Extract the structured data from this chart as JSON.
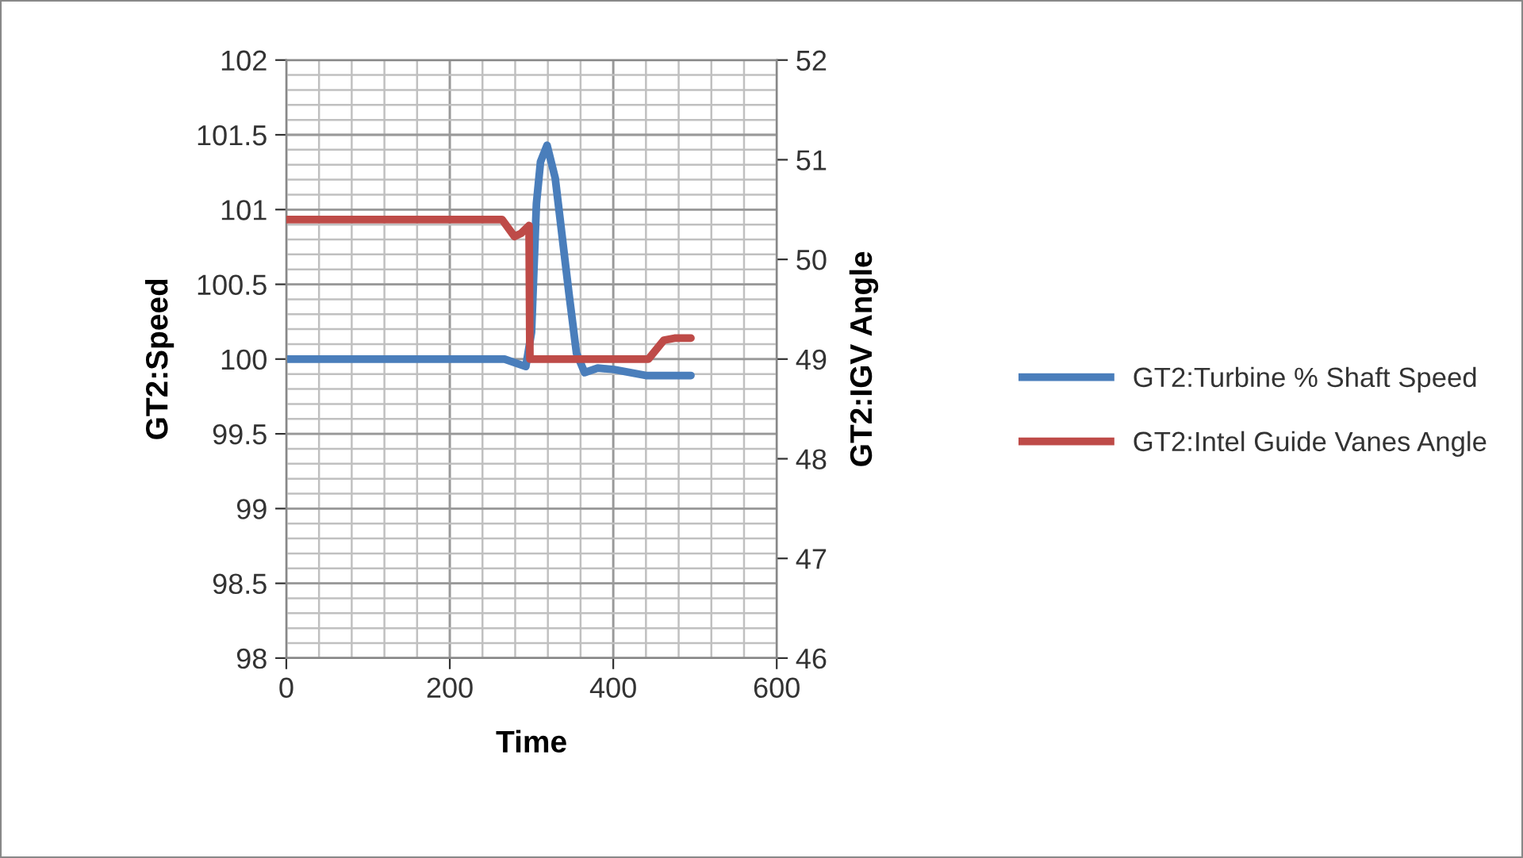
{
  "chart_data": {
    "type": "line",
    "xlabel": "Time",
    "ylabel": "GT2:Speed",
    "y2label": "GT2:IGV Angle",
    "xlim": [
      0,
      600
    ],
    "xticks": [
      0,
      200,
      400,
      600
    ],
    "ylim": [
      98,
      102
    ],
    "yticks": [
      98,
      98.5,
      99,
      99.5,
      100,
      100.5,
      101,
      101.5,
      102
    ],
    "y2lim": [
      46,
      52
    ],
    "y2ticks": [
      46,
      47,
      48,
      49,
      50,
      51,
      52
    ],
    "grid": true,
    "legend": "right",
    "marker": "none",
    "line_style": "solid",
    "series": [
      {
        "name": "GT2:Turbine % Shaft Speed",
        "color": "#4a7ebb",
        "x": [
          0,
          267,
          293,
          300,
          306,
          311,
          319,
          329,
          339,
          346,
          355,
          365,
          381,
          401,
          440,
          495
        ],
        "values": [
          100.0,
          100.0,
          99.95,
          100.18,
          101.04,
          101.32,
          101.43,
          101.21,
          100.75,
          100.43,
          100.04,
          99.91,
          99.94,
          99.93,
          99.89,
          99.89
        ]
      },
      {
        "name": "GT2:Intel Guide Vanes Angle",
        "color": "#be4b48",
        "axis": "y2",
        "x": [
          0,
          264,
          279,
          287,
          297,
          298,
          303,
          443,
          462,
          475,
          495
        ],
        "values": [
          50.4,
          50.4,
          50.23,
          50.26,
          50.34,
          49.0,
          49.0,
          49.0,
          49.19,
          49.21,
          49.21
        ]
      }
    ]
  }
}
